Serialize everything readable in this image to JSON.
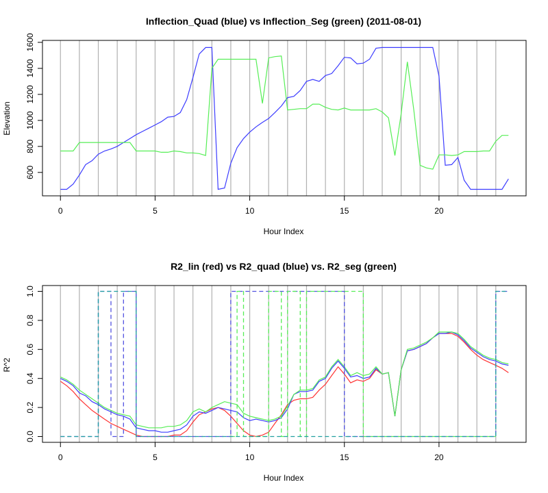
{
  "chart_data": [
    {
      "type": "line",
      "title": "Inflection_Quad (blue) vs Inflection_Seg (green) (2011-08-01)",
      "xlabel": "Hour Index",
      "ylabel": "Elevation",
      "xlim": [
        -0.95,
        24.6
      ],
      "ylim": [
        420,
        1615
      ],
      "xticks": [
        0,
        5,
        10,
        15,
        20
      ],
      "yticks": [
        600,
        800,
        1000,
        1200,
        1400,
        1600
      ],
      "vlines": [
        0,
        1,
        2,
        3,
        4,
        5,
        6,
        7,
        8,
        9,
        10,
        11,
        12,
        13,
        14,
        15,
        16,
        17,
        18,
        19,
        20,
        21,
        22,
        23
      ],
      "grid": "vertical lines at each hour",
      "colors": {
        "vline": "#b0b0b0",
        "blue": "#3c3cff",
        "green": "#55ee55"
      },
      "series": [
        {
          "color": "blue",
          "x": [
            0,
            0.33,
            0.67,
            1,
            1.33,
            1.67,
            2,
            2.33,
            2.67,
            3,
            3.33,
            3.67,
            4,
            4.33,
            4.67,
            5,
            5.33,
            5.67,
            6,
            6.33,
            6.67,
            7,
            7.33,
            7.67,
            8,
            8.33,
            8.67,
            9,
            9.33,
            9.67,
            10,
            10.33,
            10.67,
            11,
            11.33,
            11.67,
            12,
            12.33,
            12.67,
            13,
            13.33,
            13.67,
            14,
            14.33,
            14.67,
            15,
            15.33,
            15.67,
            16,
            16.33,
            16.67,
            17,
            17.33,
            17.67,
            18,
            18.33,
            18.67,
            19,
            19.33,
            19.67,
            20,
            20.33,
            20.67,
            21,
            21.33,
            21.67,
            22,
            22.33,
            22.67,
            23,
            23.33,
            23.67
          ],
          "values": [
            470,
            470,
            510,
            580,
            660,
            690,
            740,
            765,
            780,
            800,
            830,
            860,
            890,
            915,
            940,
            965,
            990,
            1025,
            1030,
            1060,
            1160,
            1330,
            1510,
            1560,
            1560,
            470,
            480,
            670,
            790,
            860,
            910,
            950,
            985,
            1015,
            1060,
            1110,
            1175,
            1185,
            1230,
            1300,
            1315,
            1300,
            1345,
            1360,
            1420,
            1485,
            1480,
            1435,
            1440,
            1470,
            1555,
            1560,
            1560,
            1560,
            1560,
            1560,
            1560,
            1560,
            1560,
            1560,
            1340,
            655,
            660,
            715,
            540,
            470,
            470,
            470,
            470,
            470,
            470,
            550
          ]
        },
        {
          "color": "green",
          "x": [
            0,
            0.33,
            0.67,
            1,
            1.33,
            1.67,
            2,
            2.33,
            2.67,
            3,
            3.33,
            3.67,
            4,
            4.33,
            4.67,
            5,
            5.33,
            5.67,
            6,
            6.33,
            6.67,
            7,
            7.33,
            7.67,
            8,
            8.33,
            8.67,
            9,
            9.33,
            9.67,
            10,
            10.33,
            10.67,
            11,
            11.33,
            11.67,
            12,
            12.33,
            12.67,
            13,
            13.33,
            13.67,
            14,
            14.33,
            14.67,
            15,
            15.33,
            15.67,
            16,
            16.33,
            16.67,
            17,
            17.33,
            17.67,
            18,
            18.33,
            18.67,
            19,
            19.33,
            19.67,
            20,
            20.33,
            20.67,
            21,
            21.33,
            21.67,
            22,
            22.33,
            22.67,
            23,
            23.33,
            23.67
          ],
          "values": [
            765,
            765,
            765,
            830,
            830,
            830,
            830,
            830,
            830,
            830,
            830,
            830,
            765,
            765,
            765,
            765,
            755,
            755,
            765,
            760,
            750,
            750,
            745,
            730,
            1400,
            1470,
            1470,
            1470,
            1470,
            1470,
            1470,
            1470,
            1130,
            1480,
            1490,
            1495,
            1080,
            1085,
            1090,
            1090,
            1125,
            1125,
            1100,
            1085,
            1080,
            1095,
            1080,
            1080,
            1080,
            1080,
            1090,
            1065,
            1020,
            730,
            1050,
            1450,
            1080,
            655,
            635,
            625,
            735,
            735,
            730,
            735,
            760,
            760,
            760,
            765,
            765,
            840,
            885,
            885
          ]
        }
      ]
    },
    {
      "type": "line",
      "title": "R2_lin (red) vs R2_quad (blue) vs. R2_seg (green)",
      "xlabel": "Hour Index",
      "ylabel": "R^2",
      "xlim": [
        -0.95,
        24.6
      ],
      "ylim": [
        -0.04,
        1.04
      ],
      "xticks": [
        0,
        5,
        10,
        15,
        20
      ],
      "yticks": [
        "0.0",
        "0.2",
        "0.4",
        "0.6",
        "0.8",
        "1.0"
      ],
      "vlines": [
        0,
        1,
        2,
        3,
        4,
        5,
        6,
        7,
        8,
        9,
        10,
        11,
        12,
        13,
        14,
        15,
        16,
        17,
        18,
        19,
        20,
        21,
        22,
        23
      ],
      "colors": {
        "red": "#ff3333",
        "blue": "#3c3cff",
        "green": "#55ee55",
        "dash_blue": "#5050e0",
        "dash_green": "#55ee55",
        "dash_teal": "#20a0a0"
      },
      "series": [
        {
          "color": "red",
          "x": [
            0,
            0.33,
            0.67,
            1,
            1.33,
            1.67,
            2,
            2.33,
            2.67,
            3,
            3.33,
            3.67,
            4,
            4.33,
            4.67,
            5,
            5.33,
            5.67,
            6,
            6.33,
            6.67,
            7,
            7.33,
            7.67,
            8,
            8.33,
            8.67,
            9,
            9.33,
            9.67,
            10,
            10.33,
            10.67,
            11,
            11.33,
            11.67,
            12,
            12.33,
            12.67,
            13,
            13.33,
            13.67,
            14,
            14.33,
            14.67,
            15,
            15.33,
            15.67,
            16,
            16.33,
            16.67,
            17,
            17.33,
            17.67,
            18,
            18.33,
            18.67,
            19,
            19.33,
            19.67,
            20,
            20.33,
            20.67,
            21,
            21.33,
            21.67,
            22,
            22.33,
            22.67,
            23,
            23.33,
            23.67
          ],
          "values": [
            0.38,
            0.35,
            0.31,
            0.26,
            0.22,
            0.18,
            0.15,
            0.12,
            0.09,
            0.07,
            0.05,
            0.03,
            0.01,
            0.0,
            0.0,
            0.0,
            0.0,
            0.0,
            0.01,
            0.01,
            0.04,
            0.1,
            0.15,
            0.17,
            0.19,
            0.2,
            0.18,
            0.14,
            0.09,
            0.04,
            0.01,
            0.0,
            0.01,
            0.03,
            0.09,
            0.15,
            0.22,
            0.25,
            0.26,
            0.26,
            0.27,
            0.32,
            0.36,
            0.42,
            0.48,
            0.43,
            0.37,
            0.39,
            0.38,
            0.4,
            0.46,
            0.43,
            0.44,
            0.14,
            0.46,
            0.59,
            0.6,
            0.62,
            0.64,
            0.68,
            0.71,
            0.71,
            0.71,
            0.69,
            0.65,
            0.6,
            0.56,
            0.53,
            0.51,
            0.49,
            0.47,
            0.44
          ]
        },
        {
          "color": "blue",
          "x": [
            0,
            0.33,
            0.67,
            1,
            1.33,
            1.67,
            2,
            2.33,
            2.67,
            3,
            3.33,
            3.67,
            4,
            4.33,
            4.67,
            5,
            5.33,
            5.67,
            6,
            6.33,
            6.67,
            7,
            7.33,
            7.67,
            8,
            8.33,
            8.67,
            9,
            9.33,
            9.67,
            10,
            10.33,
            10.67,
            11,
            11.33,
            11.67,
            12,
            12.33,
            12.67,
            13,
            13.33,
            13.67,
            14,
            14.33,
            14.67,
            15,
            15.33,
            15.67,
            16,
            16.33,
            16.67,
            17,
            17.33,
            17.67,
            18,
            18.33,
            18.67,
            19,
            19.33,
            19.67,
            20,
            20.33,
            20.67,
            21,
            21.33,
            21.67,
            22,
            22.33,
            22.67,
            23,
            23.33,
            23.67
          ],
          "values": [
            0.4,
            0.38,
            0.35,
            0.3,
            0.28,
            0.24,
            0.22,
            0.19,
            0.17,
            0.15,
            0.14,
            0.12,
            0.06,
            0.05,
            0.04,
            0.04,
            0.03,
            0.03,
            0.04,
            0.05,
            0.08,
            0.14,
            0.17,
            0.16,
            0.18,
            0.2,
            0.19,
            0.18,
            0.17,
            0.13,
            0.11,
            0.12,
            0.11,
            0.1,
            0.11,
            0.13,
            0.19,
            0.29,
            0.31,
            0.31,
            0.32,
            0.38,
            0.4,
            0.47,
            0.52,
            0.47,
            0.41,
            0.42,
            0.4,
            0.41,
            0.47,
            0.43,
            0.44,
            0.14,
            0.46,
            0.59,
            0.6,
            0.62,
            0.64,
            0.68,
            0.71,
            0.71,
            0.72,
            0.7,
            0.66,
            0.61,
            0.58,
            0.55,
            0.53,
            0.52,
            0.5,
            0.49
          ]
        },
        {
          "color": "green",
          "x": [
            0,
            0.33,
            0.67,
            1,
            1.33,
            1.67,
            2,
            2.33,
            2.67,
            3,
            3.33,
            3.67,
            4,
            4.33,
            4.67,
            5,
            5.33,
            5.67,
            6,
            6.33,
            6.67,
            7,
            7.33,
            7.67,
            8,
            8.33,
            8.67,
            9,
            9.33,
            9.67,
            10,
            10.33,
            10.67,
            11,
            11.33,
            11.67,
            12,
            12.33,
            12.67,
            13,
            13.33,
            13.67,
            14,
            14.33,
            14.67,
            15,
            15.33,
            15.67,
            16,
            16.33,
            16.67,
            17,
            17.33,
            17.67,
            18,
            18.33,
            18.67,
            19,
            19.33,
            19.67,
            20,
            20.33,
            20.67,
            21,
            21.33,
            21.67,
            22,
            22.33,
            22.67,
            23,
            23.33,
            23.67
          ],
          "values": [
            0.41,
            0.39,
            0.36,
            0.32,
            0.29,
            0.26,
            0.23,
            0.2,
            0.18,
            0.16,
            0.15,
            0.14,
            0.08,
            0.07,
            0.06,
            0.06,
            0.06,
            0.07,
            0.07,
            0.08,
            0.11,
            0.17,
            0.19,
            0.17,
            0.2,
            0.22,
            0.24,
            0.23,
            0.22,
            0.16,
            0.14,
            0.13,
            0.12,
            0.11,
            0.12,
            0.14,
            0.21,
            0.29,
            0.32,
            0.32,
            0.33,
            0.39,
            0.41,
            0.48,
            0.53,
            0.48,
            0.42,
            0.44,
            0.42,
            0.43,
            0.48,
            0.43,
            0.44,
            0.14,
            0.46,
            0.6,
            0.61,
            0.63,
            0.65,
            0.68,
            0.72,
            0.72,
            0.72,
            0.71,
            0.67,
            0.62,
            0.59,
            0.56,
            0.54,
            0.53,
            0.51,
            0.5
          ]
        },
        {
          "color": "dash_blue",
          "style": "dashed",
          "x": [
            0,
            2,
            2,
            2.67,
            2.67,
            3.33,
            3.33,
            4,
            4,
            9,
            9,
            15,
            15,
            23,
            23,
            23.67
          ],
          "values": [
            0,
            0,
            1,
            1,
            0,
            0,
            1,
            1,
            0,
            0,
            1,
            1,
            0,
            0,
            1,
            1
          ]
        },
        {
          "color": "dash_green",
          "style": "dashed",
          "x": [
            9,
            9.33,
            9.33,
            9.67,
            9.67,
            11,
            11,
            11.67,
            11.67,
            12,
            12,
            12.67,
            12.67,
            13,
            13,
            15,
            15,
            16,
            16,
            23
          ],
          "values": [
            0,
            0,
            1,
            1,
            0,
            0,
            1,
            1,
            0,
            0,
            1,
            1,
            0,
            0,
            1,
            1,
            1,
            1,
            0,
            0
          ]
        },
        {
          "color": "dash_teal",
          "style": "dashed",
          "x": [
            0,
            2,
            2,
            4,
            4,
            23,
            23,
            23.67
          ],
          "values": [
            0,
            0,
            1,
            1,
            0,
            0,
            1,
            1
          ]
        }
      ]
    }
  ]
}
